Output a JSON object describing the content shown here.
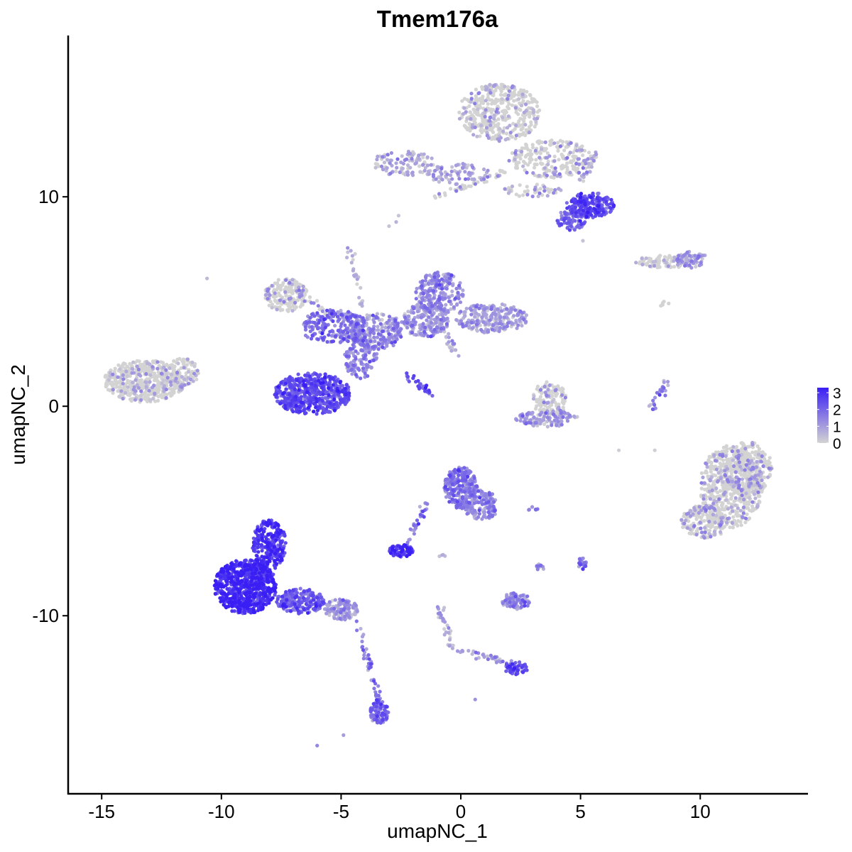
{
  "chart_data": {
    "type": "scatter",
    "title": "Tmem176a",
    "xlabel": "umapNC_1",
    "ylabel": "umapNC_2",
    "xlim": [
      -16.4,
      14.5
    ],
    "ylim": [
      -18.5,
      17.7
    ],
    "x_ticks": [
      -15,
      -10,
      -5,
      0,
      5,
      10
    ],
    "y_ticks": [
      -10,
      0,
      10
    ],
    "x_tick_labels": [
      "-15",
      "-10",
      "-5",
      "0",
      "5",
      "10"
    ],
    "y_tick_labels": [
      "-10",
      "0",
      "10"
    ],
    "grid": false,
    "legend": {
      "placement": "right",
      "min": 0,
      "max": 3.3,
      "ticks": [
        0,
        1,
        2,
        3
      ],
      "tick_labels": [
        "0",
        "1",
        "2",
        "3"
      ],
      "colors": [
        "#d3d3d3",
        "#3a1ff5"
      ]
    },
    "clusters": [
      {
        "name": "c1",
        "cx": -13.2,
        "cy": 1.2,
        "rx": 1.7,
        "ry": 1.0,
        "n": 500,
        "expr": 0.15
      },
      {
        "name": "c2",
        "cx": -11.7,
        "cy": 1.6,
        "rx": 0.8,
        "ry": 0.7,
        "n": 90,
        "expr": 0.15
      },
      {
        "name": "c3",
        "cx": 1.6,
        "cy": 14.0,
        "rx": 1.7,
        "ry": 1.4,
        "n": 450,
        "expr": 0.25
      },
      {
        "name": "c4",
        "cx": 3.8,
        "cy": 11.8,
        "rx": 1.8,
        "ry": 0.9,
        "n": 250,
        "expr": 0.5
      },
      {
        "name": "c5",
        "cx": 5.4,
        "cy": 9.6,
        "rx": 1.0,
        "ry": 0.6,
        "n": 220,
        "expr": 2.4
      },
      {
        "name": "c6",
        "cx": 4.6,
        "cy": 8.9,
        "rx": 0.6,
        "ry": 0.5,
        "n": 70,
        "expr": 2.0
      },
      {
        "name": "c7",
        "cx": -2.4,
        "cy": 11.6,
        "rx": 1.3,
        "ry": 0.6,
        "n": 100,
        "expr": 0.6
      },
      {
        "name": "c8",
        "cx": -0.1,
        "cy": 11.1,
        "rx": 1.3,
        "ry": 0.5,
        "n": 80,
        "expr": 0.7
      },
      {
        "name": "c9",
        "cx": 3.0,
        "cy": 10.3,
        "rx": 1.2,
        "ry": 0.3,
        "n": 50,
        "expr": 0.4
      },
      {
        "name": "c10",
        "cx": -7.3,
        "cy": 5.3,
        "rx": 0.9,
        "ry": 0.8,
        "n": 180,
        "expr": 0.3
      },
      {
        "name": "c11",
        "cx": -5.3,
        "cy": 3.8,
        "rx": 1.4,
        "ry": 0.8,
        "n": 220,
        "expr": 1.7
      },
      {
        "name": "c12",
        "cx": -3.5,
        "cy": 3.6,
        "rx": 1.1,
        "ry": 0.9,
        "n": 200,
        "expr": 1.2
      },
      {
        "name": "c13",
        "cx": -1.5,
        "cy": 4.1,
        "rx": 1.0,
        "ry": 0.8,
        "n": 200,
        "expr": 1.0
      },
      {
        "name": "c14",
        "cx": -0.9,
        "cy": 5.4,
        "rx": 1.0,
        "ry": 1.0,
        "n": 220,
        "expr": 1.2
      },
      {
        "name": "c15",
        "cx": 1.3,
        "cy": 4.2,
        "rx": 1.5,
        "ry": 0.7,
        "n": 250,
        "expr": 0.8
      },
      {
        "name": "c16",
        "cx": -6.2,
        "cy": 0.6,
        "rx": 1.6,
        "ry": 1.0,
        "n": 550,
        "expr": 2.3
      },
      {
        "name": "c17",
        "cx": -4.2,
        "cy": 2.5,
        "rx": 0.7,
        "ry": 1.2,
        "n": 150,
        "expr": 1.3
      },
      {
        "name": "c18",
        "cx": 3.7,
        "cy": 0.3,
        "rx": 0.7,
        "ry": 0.9,
        "n": 130,
        "expr": 0.3
      },
      {
        "name": "c19",
        "cx": 3.6,
        "cy": -0.6,
        "rx": 1.3,
        "ry": 0.4,
        "n": 110,
        "expr": 0.9
      },
      {
        "name": "c20",
        "cx": 8.5,
        "cy": 6.9,
        "rx": 1.2,
        "ry": 0.3,
        "n": 80,
        "expr": 0.3
      },
      {
        "name": "c21",
        "cx": 9.6,
        "cy": 7.0,
        "rx": 0.7,
        "ry": 0.4,
        "n": 70,
        "expr": 0.8
      },
      {
        "name": "c22",
        "cx": 11.3,
        "cy": -3.8,
        "rx": 1.3,
        "ry": 2.0,
        "n": 550,
        "expr": 0.3
      },
      {
        "name": "c23",
        "cx": 12.0,
        "cy": -3.0,
        "rx": 1.0,
        "ry": 1.3,
        "n": 250,
        "expr": 0.3
      },
      {
        "name": "c24",
        "cx": 10.2,
        "cy": -5.5,
        "rx": 1.0,
        "ry": 0.8,
        "n": 200,
        "expr": 0.5
      },
      {
        "name": "c25",
        "cx": 0.0,
        "cy": -3.9,
        "rx": 0.7,
        "ry": 1.0,
        "n": 250,
        "expr": 1.5
      },
      {
        "name": "c26",
        "cx": 0.8,
        "cy": -4.7,
        "rx": 0.7,
        "ry": 0.7,
        "n": 120,
        "expr": 1.3
      },
      {
        "name": "c27",
        "cx": -2.5,
        "cy": -6.9,
        "rx": 0.5,
        "ry": 0.3,
        "n": 90,
        "expr": 2.7
      },
      {
        "name": "c28",
        "cx": -9.0,
        "cy": -8.6,
        "rx": 1.3,
        "ry": 1.3,
        "n": 700,
        "expr": 2.9
      },
      {
        "name": "c29",
        "cx": -8.0,
        "cy": -6.6,
        "rx": 0.7,
        "ry": 1.2,
        "n": 250,
        "expr": 2.7
      },
      {
        "name": "c30",
        "cx": -6.7,
        "cy": -9.3,
        "rx": 1.0,
        "ry": 0.6,
        "n": 220,
        "expr": 2.0
      },
      {
        "name": "c31",
        "cx": -5.0,
        "cy": -9.7,
        "rx": 0.7,
        "ry": 0.5,
        "n": 120,
        "expr": 0.8
      },
      {
        "name": "c32",
        "cx": 2.3,
        "cy": -9.3,
        "rx": 0.6,
        "ry": 0.4,
        "n": 100,
        "expr": 1.1
      },
      {
        "name": "c33",
        "cx": -3.4,
        "cy": -14.6,
        "rx": 0.4,
        "ry": 0.6,
        "n": 90,
        "expr": 1.8
      },
      {
        "name": "c34",
        "cx": 2.3,
        "cy": -12.5,
        "rx": 0.5,
        "ry": 0.3,
        "n": 50,
        "expr": 2.3
      },
      {
        "name": "c35",
        "cx": 5.1,
        "cy": -7.5,
        "rx": 0.2,
        "ry": 0.3,
        "n": 25,
        "expr": 1.6
      },
      {
        "name": "c36",
        "cx": 3.3,
        "cy": -7.7,
        "rx": 0.2,
        "ry": 0.2,
        "n": 12,
        "expr": 1.2
      }
    ],
    "trails": [
      {
        "name": "t1",
        "from": [
          -1.4,
          9.9
        ],
        "to": [
          1.9,
          11.2
        ],
        "n": 40,
        "expr": 0.4
      },
      {
        "name": "t2",
        "from": [
          -4.7,
          7.6
        ],
        "to": [
          -4.1,
          4.8
        ],
        "n": 25,
        "expr": 0.6
      },
      {
        "name": "t3",
        "from": [
          -2.3,
          1.6
        ],
        "to": [
          -1.3,
          0.6
        ],
        "n": 30,
        "expr": 2.4
      },
      {
        "name": "t4",
        "from": [
          7.8,
          -0.4
        ],
        "to": [
          8.6,
          1.2
        ],
        "n": 25,
        "expr": 1.4
      },
      {
        "name": "t5",
        "from": [
          1.3,
          -5.4
        ],
        "to": [
          1.3,
          -4.2
        ],
        "n": 20,
        "expr": 1.2
      },
      {
        "name": "t6",
        "from": [
          -1.5,
          -4.7
        ],
        "to": [
          -2.3,
          -6.7
        ],
        "n": 30,
        "expr": 1.4
      },
      {
        "name": "t7",
        "from": [
          -4.4,
          -10.3
        ],
        "to": [
          -3.4,
          -14.0
        ],
        "n": 40,
        "expr": 1.5
      },
      {
        "name": "t8",
        "from": [
          -1.0,
          -9.4
        ],
        "to": [
          -0.3,
          -11.6
        ],
        "n": 30,
        "expr": 0.8
      },
      {
        "name": "t9",
        "from": [
          -0.3,
          -11.6
        ],
        "to": [
          2.3,
          -12.3
        ],
        "n": 35,
        "expr": 0.9
      },
      {
        "name": "t10",
        "from": [
          5.6,
          12.0
        ],
        "to": [
          4.9,
          10.5
        ],
        "n": 25,
        "expr": 0.6
      },
      {
        "name": "t11",
        "from": [
          -6.8,
          5.6
        ],
        "to": [
          -5.5,
          4.3
        ],
        "n": 25,
        "expr": 0.5
      },
      {
        "name": "t12",
        "from": [
          -0.2,
          2.5
        ],
        "to": [
          -0.7,
          3.6
        ],
        "n": 20,
        "expr": 0.6
      },
      {
        "name": "t13",
        "from": [
          8.3,
          5.0
        ],
        "to": [
          8.8,
          4.6
        ],
        "n": 6,
        "expr": 0.1
      },
      {
        "name": "t14",
        "from": [
          2.7,
          -5.0
        ],
        "to": [
          3.2,
          -4.9
        ],
        "n": 6,
        "expr": 1.5
      },
      {
        "name": "t15",
        "from": [
          -0.7,
          -7.0
        ],
        "to": [
          -0.9,
          -7.2
        ],
        "n": 4,
        "expr": 1.0
      }
    ],
    "outliers": [
      {
        "x": -10.6,
        "y": 6.1,
        "expr": 0.5
      },
      {
        "x": -3.0,
        "y": 8.6,
        "expr": 0.3
      },
      {
        "x": -2.7,
        "y": 8.8,
        "expr": 0.6
      },
      {
        "x": -2.6,
        "y": 9.1,
        "expr": 0.3
      },
      {
        "x": 5.1,
        "y": 7.9,
        "expr": 0.3
      },
      {
        "x": 6.6,
        "y": -2.1,
        "expr": 0.1
      },
      {
        "x": 8.1,
        "y": -2.1,
        "expr": 0.1
      },
      {
        "x": -6.0,
        "y": -16.2,
        "expr": 1.4
      },
      {
        "x": -4.9,
        "y": -15.7,
        "expr": 1.0
      },
      {
        "x": 0.6,
        "y": -14.0,
        "expr": 1.2
      }
    ]
  }
}
